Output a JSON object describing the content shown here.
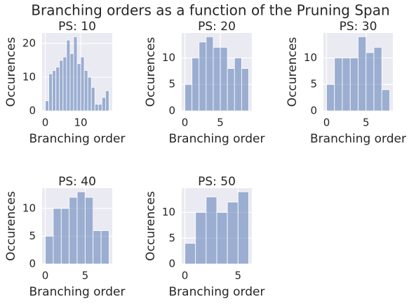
{
  "title": "Branching orders as a function of the Pruning Span",
  "chart_data": [
    {
      "type": "histogram",
      "title": "PS: 10",
      "xlabel": "Branching order",
      "ylabel": "Occurences",
      "color": "#4c72b0",
      "bins": [
        0,
        1,
        2,
        3,
        4,
        5,
        6,
        7,
        8,
        9,
        10,
        11,
        12,
        13,
        14,
        15,
        16,
        17,
        18
      ],
      "values": [
        3,
        11,
        12,
        13,
        15,
        16,
        21,
        17,
        22,
        14,
        16,
        12,
        10,
        7,
        2,
        2,
        4,
        6
      ],
      "xlim": [
        -0.9,
        18.9
      ],
      "ylim": [
        0,
        23.1
      ],
      "xticks": [
        0,
        10
      ],
      "yticks": [
        0,
        10,
        20
      ],
      "grid": true
    },
    {
      "type": "histogram",
      "title": "PS: 20",
      "xlabel": "Branching order",
      "ylabel": "Occurences",
      "color": "#4c72b0",
      "bins": [
        0,
        1,
        2,
        3,
        4,
        5,
        6,
        7,
        8,
        9
      ],
      "values": [
        5,
        10,
        13,
        14,
        12,
        12,
        8,
        10,
        8
      ],
      "xlim": [
        -0.45,
        9.45
      ],
      "ylim": [
        0,
        14.7
      ],
      "xticks": [
        0,
        5
      ],
      "yticks": [
        0,
        5,
        10
      ],
      "grid": true
    },
    {
      "type": "histogram",
      "title": "PS: 30",
      "xlabel": "Branching order",
      "ylabel": "Occurences",
      "color": "#4c72b0",
      "bins": [
        0,
        1,
        2,
        3,
        4,
        5,
        6,
        7,
        8
      ],
      "values": [
        5,
        10,
        10,
        10,
        14,
        11,
        12,
        4
      ],
      "xlim": [
        -0.4,
        8.4
      ],
      "ylim": [
        0,
        14.7
      ],
      "xticks": [
        0,
        5
      ],
      "yticks": [
        0,
        5,
        10
      ],
      "grid": true
    },
    {
      "type": "histogram",
      "title": "PS: 40",
      "xlabel": "Branching order",
      "ylabel": "Occurences",
      "color": "#4c72b0",
      "bins": [
        0,
        1,
        2,
        3,
        4,
        5,
        6,
        7,
        8
      ],
      "values": [
        5,
        10,
        10,
        12,
        13,
        12,
        6,
        6
      ],
      "xlim": [
        -0.4,
        8.4
      ],
      "ylim": [
        0,
        13.65
      ],
      "xticks": [
        0,
        5
      ],
      "yticks": [
        0,
        5,
        10
      ],
      "grid": true
    },
    {
      "type": "histogram",
      "title": "PS: 50",
      "xlabel": "Branching order",
      "ylabel": "Occurences",
      "color": "#4c72b0",
      "bins": [
        0,
        1,
        2,
        3,
        4,
        5,
        6
      ],
      "values": [
        4,
        10,
        13,
        10,
        12,
        14
      ],
      "xlim": [
        -0.3,
        6.3
      ],
      "ylim": [
        0,
        14.7
      ],
      "xticks": [
        0,
        5
      ],
      "yticks": [
        0,
        5,
        10
      ],
      "grid": true
    }
  ]
}
